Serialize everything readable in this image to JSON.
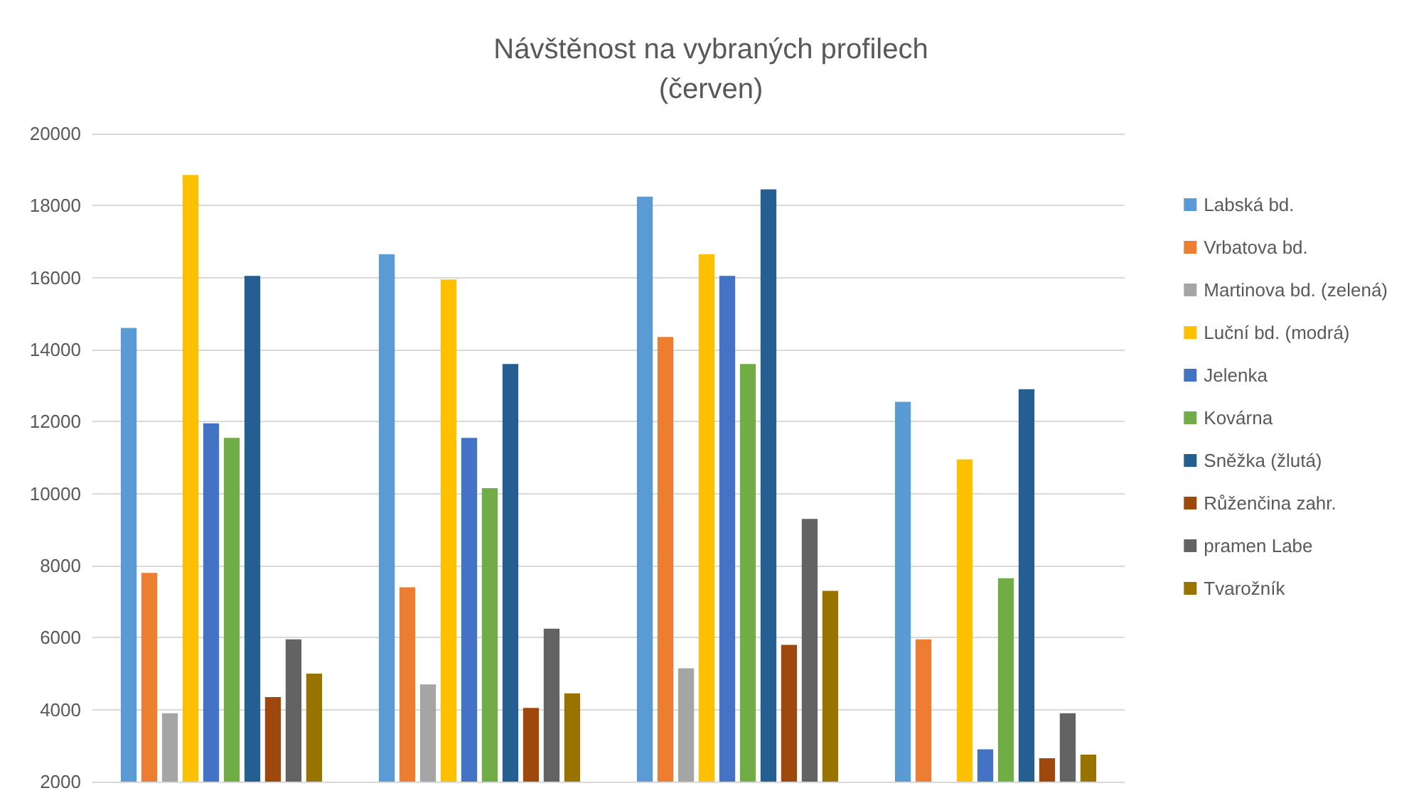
{
  "chart_data": {
    "type": "bar",
    "title": "Návštěnost na vybraných profilech\n(červen)",
    "categories": [
      null,
      null,
      null,
      null
    ],
    "series": [
      {
        "name": "Labská bd.",
        "color": "#5b9bd5",
        "values": [
          14600,
          16650,
          18250,
          12550
        ]
      },
      {
        "name": "Vrbatova bd.",
        "color": "#ed7d31",
        "values": [
          7800,
          7400,
          14350,
          5950
        ]
      },
      {
        "name": "Martinova bd. (zelená)",
        "color": "#a5a5a5",
        "values": [
          3900,
          4700,
          5150,
          null
        ]
      },
      {
        "name": "Luční bd. (modrá)",
        "color": "#ffc000",
        "values": [
          18850,
          15950,
          16650,
          10950
        ]
      },
      {
        "name": "Jelenka",
        "color": "#4472c4",
        "values": [
          11950,
          11550,
          16050,
          2900
        ]
      },
      {
        "name": "Kovárna",
        "color": "#70ad47",
        "values": [
          11550,
          10150,
          13600,
          7650
        ]
      },
      {
        "name": "Sněžka (žlutá)",
        "color": "#255e91",
        "values": [
          16050,
          13600,
          18450,
          12900
        ]
      },
      {
        "name": "Růženčina zahr.",
        "color": "#9e480e",
        "values": [
          4350,
          4050,
          5800,
          2650
        ]
      },
      {
        "name": "pramen Labe",
        "color": "#636363",
        "values": [
          5950,
          6250,
          9300,
          3900
        ]
      },
      {
        "name": "Tvarožník",
        "color": "#997300",
        "values": [
          5000,
          4450,
          7300,
          2750
        ]
      }
    ],
    "ylim": [
      2000,
      20000
    ],
    "yticks": [
      2000,
      4000,
      6000,
      8000,
      10000,
      12000,
      14000,
      16000,
      18000,
      20000
    ],
    "grid": "y",
    "legend": "right"
  }
}
